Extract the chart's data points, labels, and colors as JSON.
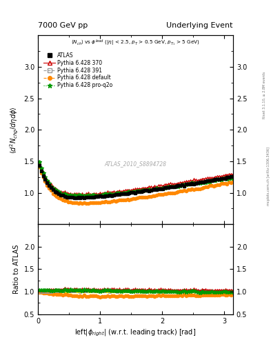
{
  "title_left": "7000 GeV pp",
  "title_right": "Underlying Event",
  "xlabel": "left|\\u03d5right| (w.r.t. leading track) [rad]",
  "ylabel_main": "\\u27e8d^2 N_{chg}/d\\u03b7d\\u03d5\\u27e9",
  "ylabel_ratio": "Ratio to ATLAS",
  "watermark": "ATLAS_2010_S8894728",
  "right_label_top": "Rivet 3.1.10, \\u2265 2.8M events",
  "right_label_bot": "mcplots.cern.ch [arXiv:1306.3436]",
  "xlim": [
    0,
    3.14159
  ],
  "ylim_main": [
    0.5,
    3.5
  ],
  "ylim_ratio": [
    0.5,
    2.5
  ],
  "yticks_main": [
    1.0,
    1.5,
    2.0,
    2.5,
    3.0
  ],
  "yticks_ratio": [
    0.5,
    1.0,
    1.5,
    2.0
  ],
  "series": {
    "ATLAS": {
      "color": "#000000",
      "marker": "s",
      "markersize": 3,
      "label": "ATLAS",
      "zorder": 10
    },
    "370": {
      "color": "#cc0000",
      "marker": "^",
      "markersize": 3,
      "linestyle": "-",
      "linewidth": 0.8,
      "label": "Pythia 6.428 370",
      "zorder": 5
    },
    "391": {
      "color": "#999999",
      "marker": "s",
      "markersize": 3,
      "linestyle": "--",
      "linewidth": 0.8,
      "label": "Pythia 6.428 391",
      "zorder": 4
    },
    "default": {
      "color": "#ff8800",
      "marker": "o",
      "markersize": 3,
      "linestyle": "--",
      "linewidth": 0.8,
      "label": "Pythia 6.428 default",
      "zorder": 3
    },
    "proq2o": {
      "color": "#009900",
      "marker": "*",
      "markersize": 4,
      "linestyle": ":",
      "linewidth": 0.8,
      "label": "Pythia 6.428 pro-q2o",
      "zorder": 6
    }
  },
  "atlas_error_color": "#ffff00",
  "background_color": "#ffffff"
}
